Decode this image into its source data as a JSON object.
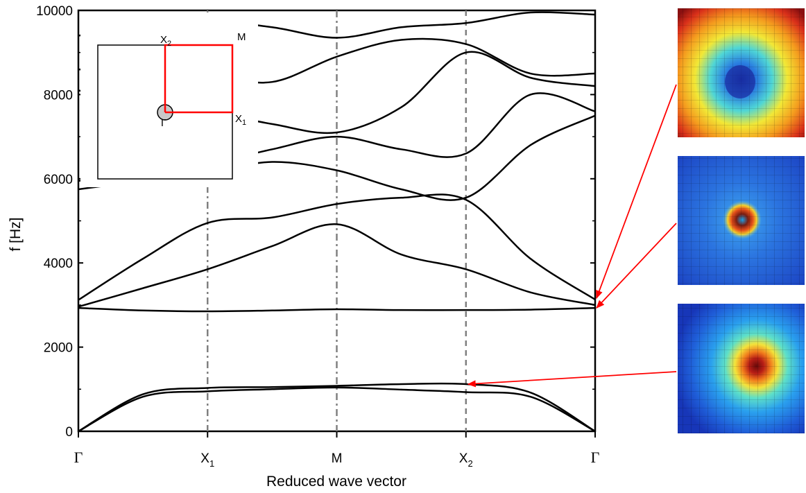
{
  "chart_data": {
    "type": "line",
    "title": "",
    "xlabel": "Reduced wave vector",
    "ylabel": "f [Hz]",
    "ylim": [
      0,
      10000
    ],
    "yticks": [
      "0",
      "2000",
      "4000",
      "6000",
      "8000",
      "10000"
    ],
    "xticks": [
      {
        "main": "Γ",
        "sub": ""
      },
      {
        "main": "X",
        "sub": "1"
      },
      {
        "main": "M",
        "sub": ""
      },
      {
        "main": "X",
        "sub": "2"
      },
      {
        "main": "Γ",
        "sub": ""
      }
    ],
    "grid": false,
    "x": [
      0,
      0.5,
      1,
      1.5,
      2,
      2.5,
      3,
      3.5,
      4
    ],
    "series": [
      {
        "values": [
          0,
          820,
          950,
          1000,
          1040,
          990,
          930,
          820,
          0
        ]
      },
      {
        "values": [
          0,
          880,
          1030,
          1050,
          1080,
          1120,
          1120,
          920,
          0
        ]
      },
      {
        "values": [
          2930,
          2870,
          2850,
          2870,
          2900,
          2880,
          2880,
          2890,
          2930
        ]
      },
      {
        "values": [
          2960,
          3400,
          3850,
          4400,
          4920,
          4200,
          3850,
          3300,
          3000
        ]
      },
      {
        "values": [
          3120,
          4100,
          4950,
          5080,
          5400,
          5550,
          5500,
          4100,
          3130
        ]
      },
      {
        "values": [
          5750,
          5950,
          6150,
          6400,
          6200,
          5750,
          5550,
          6800,
          7500
        ]
      },
      {
        "values": [
          5950,
          6150,
          6350,
          6700,
          7000,
          6700,
          6600,
          8000,
          7600
        ]
      },
      {
        "values": [
          8100,
          7800,
          7600,
          7300,
          7100,
          7700,
          9000,
          8400,
          8200
        ]
      },
      {
        "values": [
          8600,
          8500,
          8450,
          8300,
          8900,
          9300,
          9200,
          8500,
          8500
        ]
      },
      {
        "values": [
          9400,
          9600,
          9750,
          9600,
          9350,
          9600,
          9700,
          9950,
          9900
        ]
      }
    ],
    "vlines": [
      1,
      2,
      3
    ],
    "inset": {
      "labels": [
        "X2",
        "M",
        "X1",
        "Γ"
      ]
    },
    "annotations": [
      {
        "target": [
          4,
          3130
        ],
        "color": "#ff0000"
      },
      {
        "target": [
          4,
          2930
        ],
        "color": "#ff0000"
      },
      {
        "target": [
          3,
          1120
        ],
        "color": "#ff0000"
      }
    ]
  },
  "colors": {
    "line": "#000000",
    "vline": "#808080",
    "inset_path": "#ff0000",
    "arrow": "#ff0000",
    "gamma_circle": "#c8c8c8"
  },
  "mode_shapes": [
    {
      "name": "mode-shape-top",
      "palette": "red-outer-blue-core"
    },
    {
      "name": "mode-shape-middle",
      "palette": "blue-with-ring"
    },
    {
      "name": "mode-shape-bottom",
      "palette": "blue-outer-red-core"
    }
  ],
  "inset": {
    "x2_main": "X",
    "x2_sub": "2",
    "m_label": "M",
    "x1_main": "X",
    "x1_sub": "1",
    "gamma_label": "Γ"
  }
}
